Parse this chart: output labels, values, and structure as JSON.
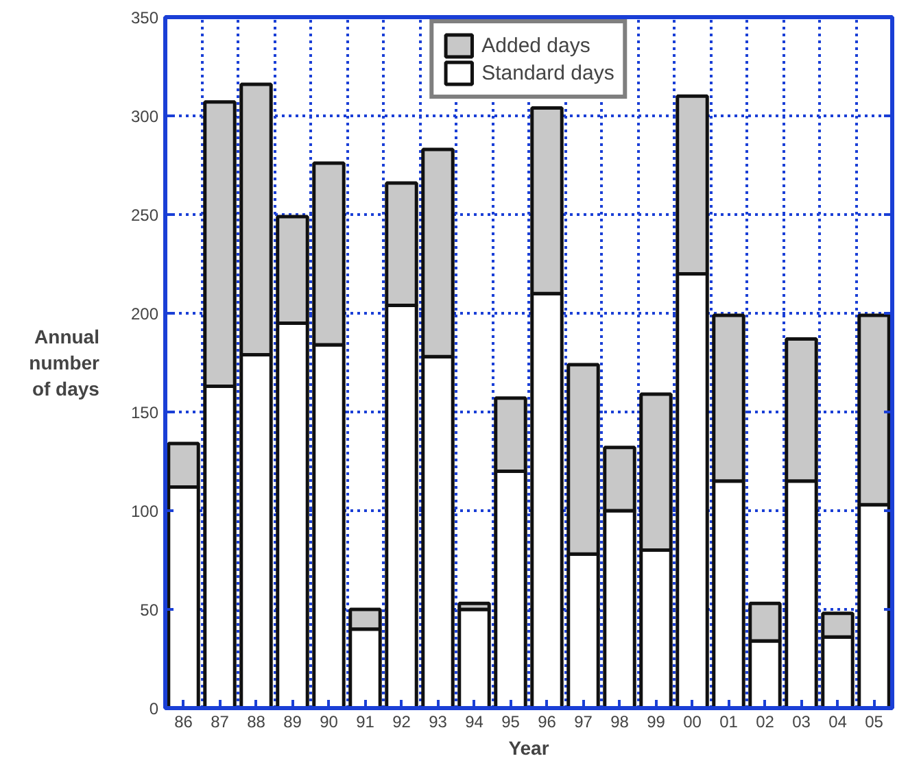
{
  "chart_data": {
    "type": "bar",
    "stacked": true,
    "xlabel": "Year",
    "ylabel": "Annual\nnumber\nof days",
    "categories": [
      "86",
      "87",
      "88",
      "89",
      "90",
      "91",
      "92",
      "93",
      "94",
      "95",
      "96",
      "97",
      "98",
      "99",
      "00",
      "01",
      "02",
      "03",
      "04",
      "05"
    ],
    "series": [
      {
        "name": "Standard days",
        "color": "#ffffff",
        "values": [
          112,
          163,
          179,
          195,
          184,
          40,
          204,
          178,
          50,
          120,
          210,
          78,
          100,
          80,
          220,
          115,
          34,
          115,
          36,
          103
        ]
      },
      {
        "name": "Added days",
        "color": "#c8c8c8",
        "values": [
          22,
          144,
          137,
          54,
          92,
          10,
          62,
          105,
          3,
          37,
          94,
          96,
          32,
          79,
          90,
          84,
          19,
          72,
          12,
          96
        ]
      }
    ],
    "ylim": [
      0,
      350
    ],
    "yticks": [
      0,
      50,
      100,
      150,
      200,
      250,
      300,
      350
    ],
    "grid": true,
    "legend": "top"
  }
}
